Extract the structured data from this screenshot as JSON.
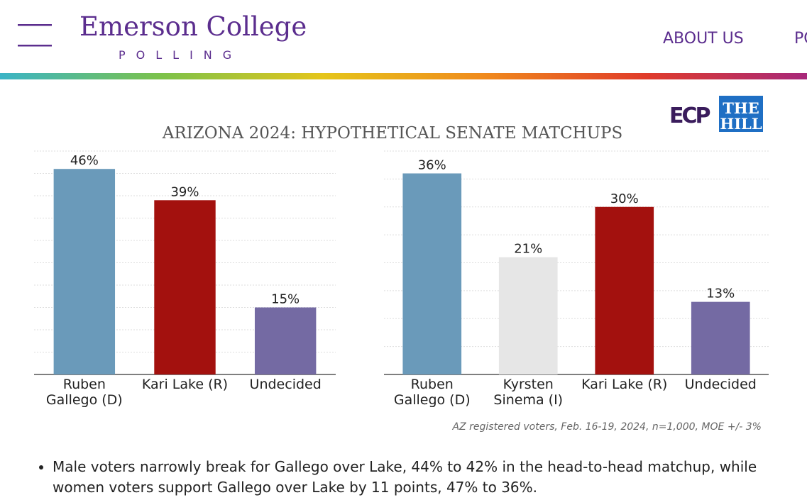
{
  "header": {
    "brand": "Emerson College",
    "subbrand": "POLLING",
    "nav": [
      "ABOUT US",
      "PO"
    ]
  },
  "logos": {
    "ecp": "ECP",
    "hill_top": "THE",
    "hill_bottom": "HILL"
  },
  "title": "ARIZONA 2024: HYPOTHETICAL SENATE MATCHUPS",
  "chart_data": [
    {
      "type": "bar",
      "categories": [
        "Ruben\nGallego (D)",
        "Kari Lake (R)",
        "Undecided"
      ],
      "values": [
        46,
        39,
        15
      ],
      "value_labels": [
        "46%",
        "39%",
        "15%"
      ],
      "colors": [
        "#6a9aba",
        "#a3110e",
        "#746aa3"
      ],
      "ylim": [
        0,
        50
      ],
      "yticks": [
        0,
        5,
        10,
        15,
        20,
        25,
        30,
        35,
        40,
        45,
        50
      ],
      "grid": true
    },
    {
      "type": "bar",
      "categories": [
        "Ruben\nGallego (D)",
        "Kyrsten\nSinema (I)",
        "Kari Lake (R)",
        "Undecided"
      ],
      "values": [
        36,
        21,
        30,
        13
      ],
      "value_labels": [
        "36%",
        "21%",
        "30%",
        "13%"
      ],
      "colors": [
        "#6a9aba",
        "#e6e6e6",
        "#a3110e",
        "#746aa3"
      ],
      "ylim": [
        0,
        40
      ],
      "yticks": [
        0,
        5,
        10,
        15,
        20,
        25,
        30,
        35,
        40
      ],
      "grid": true
    }
  ],
  "caption": "AZ registered voters, Feb. 16-19, 2024, n=1,000, MOE +/- 3%",
  "bullets": [
    "Male voters narrowly break for Gallego over Lake, 44% to 42% in the head-to-head matchup, while women voters support Gallego over Lake by 11 points, 47% to 36%."
  ]
}
